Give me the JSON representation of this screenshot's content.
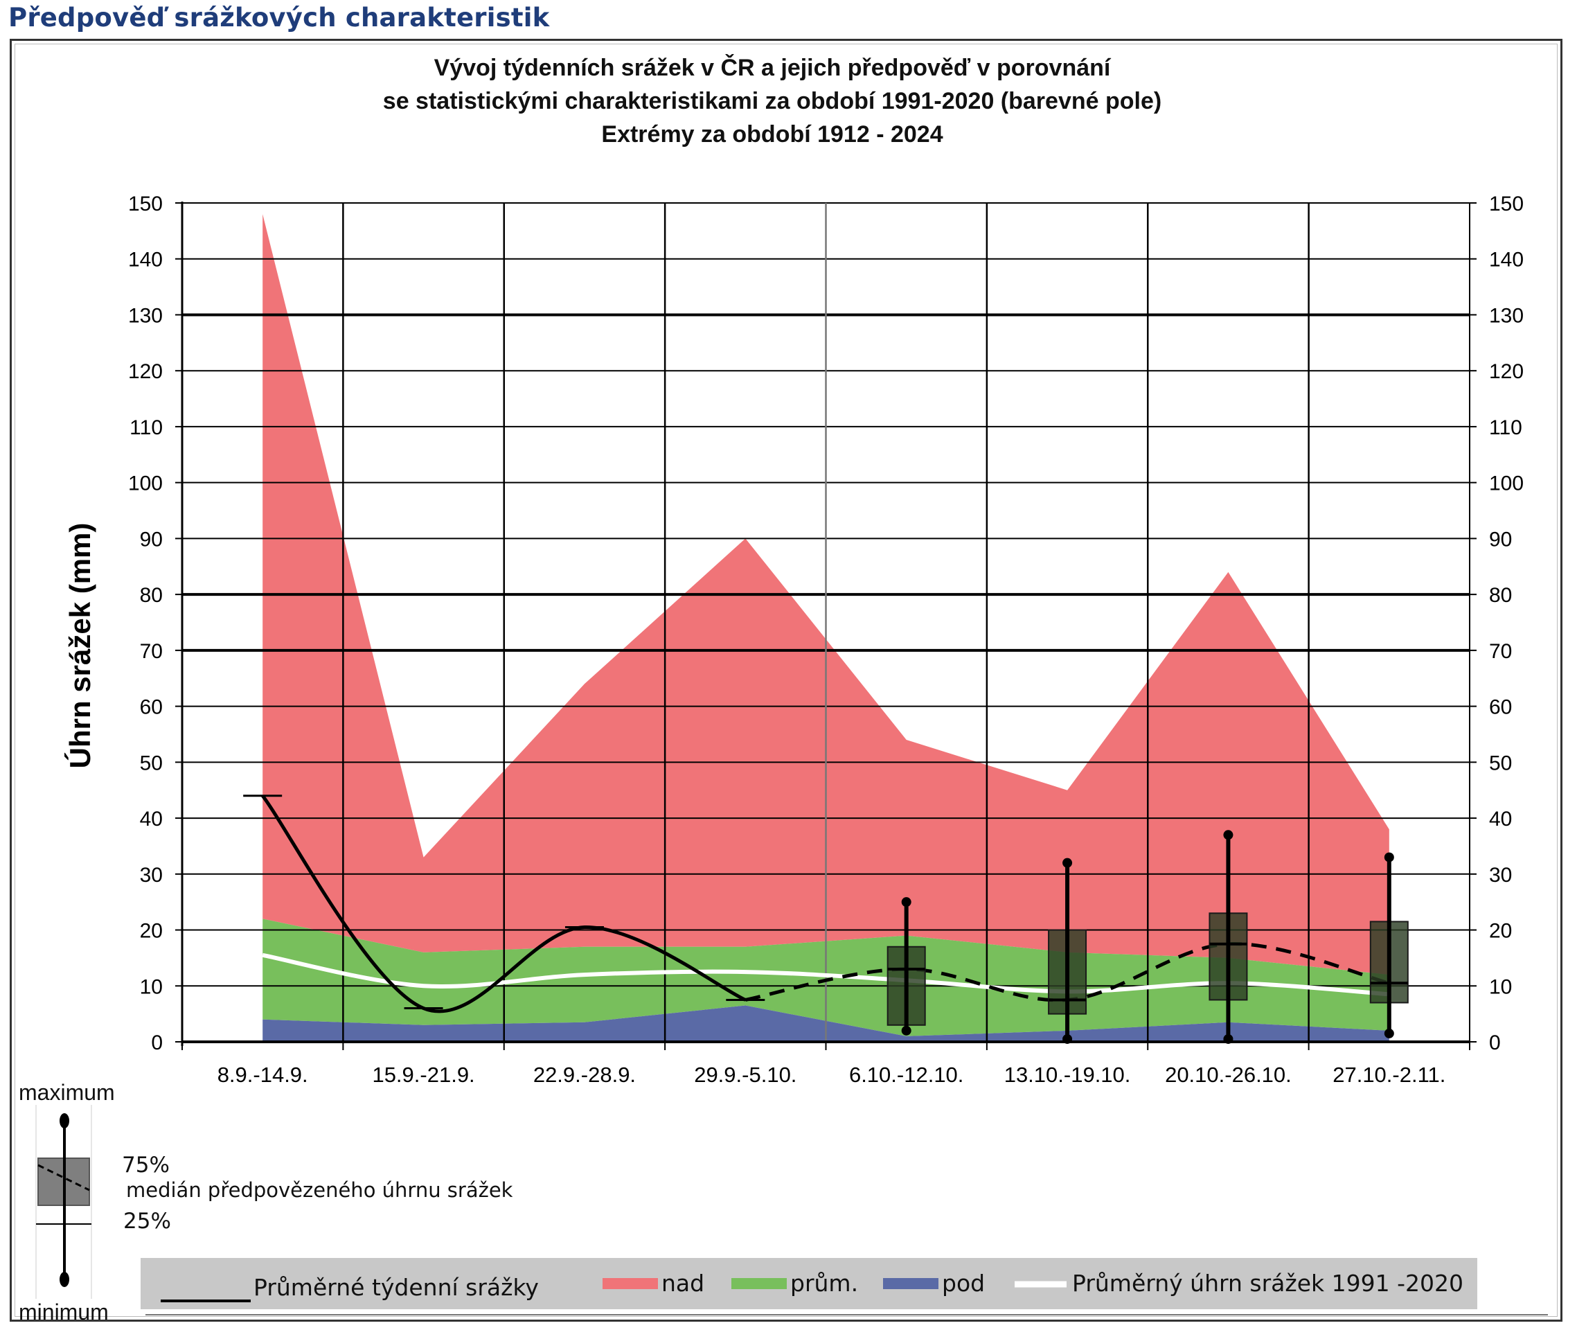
{
  "page_title": "Předpověď srážkových charakteristik",
  "chart_title": [
    "Vývoj týdenních srážek v ČR a jejich předpověď v porovnání",
    "se statistickými charakteristikami za období 1991-2020 (barevné pole)",
    "Extrémy za období 1912 - 2024"
  ],
  "colors": {
    "nad": "#f07478",
    "prum": "#78bf5c",
    "pod": "#5a6aa6",
    "box": "#2c3e24",
    "legend_bar": "#c8c8c8",
    "title": "#1f3d7a"
  },
  "chart_data": {
    "type": "area",
    "ylabel": "Úhrn srážek (mm)",
    "ylim": [
      0,
      150
    ],
    "y_ticks": [
      "0",
      "10",
      "20",
      "30",
      "40",
      "50",
      "60",
      "70",
      "80",
      "90",
      "100",
      "110",
      "120",
      "130",
      "140",
      "150"
    ],
    "categories": [
      "8.9.-14.9.",
      "15.9.-21.9.",
      "22.9.-28.9.",
      "29.9.-5.10.",
      "6.10.-12.10.",
      "13.10.-19.10.",
      "20.10.-26.10.",
      "27.10.-2.11."
    ],
    "max_1912_2024": [
      148,
      33,
      64,
      90,
      54,
      45,
      84,
      38
    ],
    "p75_1991_2020": [
      22,
      16,
      17,
      17,
      19,
      16,
      15,
      12
    ],
    "avg_1991_2020": [
      15.5,
      10,
      12,
      12.5,
      11,
      9,
      10.5,
      8.5
    ],
    "p25_1991_2020": [
      4,
      3,
      3.5,
      6.5,
      1,
      2,
      3.5,
      2
    ],
    "actual_weekly": [
      44,
      6,
      20.5,
      7.5
    ],
    "forecast": [
      {
        "category": "6.10.-12.10.",
        "min": 2,
        "q25": 3,
        "median": 13,
        "q75": 17,
        "max": 25
      },
      {
        "category": "13.10.-19.10.",
        "min": 0.5,
        "q25": 5,
        "median": 7.5,
        "q75": 20,
        "max": 32
      },
      {
        "category": "20.10.-26.10.",
        "min": 0.5,
        "q25": 7.5,
        "median": 17.5,
        "q75": 23,
        "max": 37
      },
      {
        "category": "27.10.-2.11.",
        "min": 1.5,
        "q25": 7,
        "median": 10.5,
        "q75": 21.5,
        "max": 33
      }
    ]
  },
  "legend": {
    "actual": "Průměrné týdenní srážky",
    "nad": "nad",
    "prum": "prům.",
    "pod": "pod",
    "avg": "Průměrný úhrn srážek 1991 -2020"
  },
  "box_legend": {
    "maximum": "maximum",
    "q75": "75%",
    "median": "medián předpovězeného úhrnu srážek",
    "q25": "25%",
    "minimum": "minimum"
  }
}
